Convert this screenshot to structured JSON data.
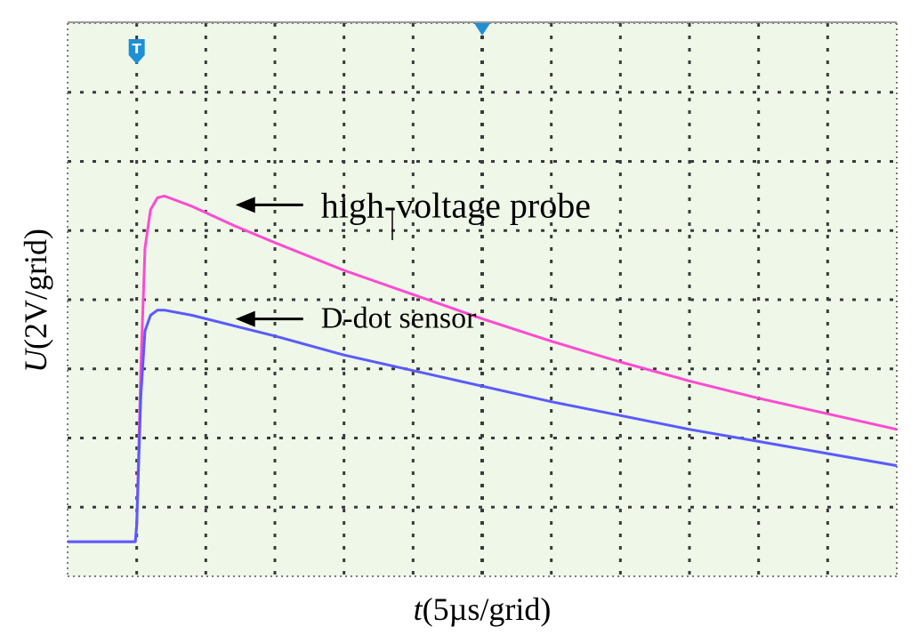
{
  "chart_data": {
    "type": "line",
    "xlabel": {
      "var": "t",
      "unit": "(5µs/grid)"
    },
    "ylabel": {
      "var": "U",
      "unit": "(2V/grid)"
    },
    "xlim": [
      0,
      60
    ],
    "ylim": [
      -1,
      15
    ],
    "grid": true,
    "background": "#eef7e8",
    "markers": [
      {
        "name": "trigger-marker",
        "glyph": "T",
        "x": 5
      },
      {
        "name": "center-marker",
        "x": 30
      }
    ],
    "series": [
      {
        "name": "high-voltage probe",
        "color": "#ff4ad2",
        "x": [
          0,
          4.9,
          5.0,
          5.3,
          5.6,
          6.0,
          6.5,
          7.0,
          9,
          12,
          15,
          20,
          25,
          30,
          35,
          40,
          45,
          50,
          55,
          60
        ],
        "y": [
          0.0,
          0.0,
          0.5,
          5.0,
          8.5,
          9.6,
          9.95,
          10.0,
          9.7,
          9.15,
          8.65,
          7.85,
          7.15,
          6.45,
          5.8,
          5.2,
          4.65,
          4.15,
          3.7,
          3.25
        ]
      },
      {
        "name": "D-dot sensor",
        "color": "#5a5aff",
        "x": [
          0,
          4.9,
          5.0,
          5.3,
          5.6,
          6.0,
          6.5,
          7.0,
          9,
          12,
          15,
          20,
          25,
          30,
          35,
          40,
          45,
          50,
          55,
          60
        ],
        "y": [
          0.0,
          0.0,
          0.5,
          4.2,
          6.1,
          6.55,
          6.7,
          6.7,
          6.55,
          6.25,
          5.95,
          5.4,
          4.95,
          4.5,
          4.05,
          3.65,
          3.25,
          2.9,
          2.55,
          2.2
        ]
      }
    ],
    "annotations": [
      {
        "text": "high-voltage probe",
        "series": "high-voltage probe",
        "x": 7.0,
        "y": 10.0
      },
      {
        "text": "D-dot sensor",
        "series": "D-dot sensor",
        "x": 7.0,
        "y": 6.7
      }
    ]
  }
}
